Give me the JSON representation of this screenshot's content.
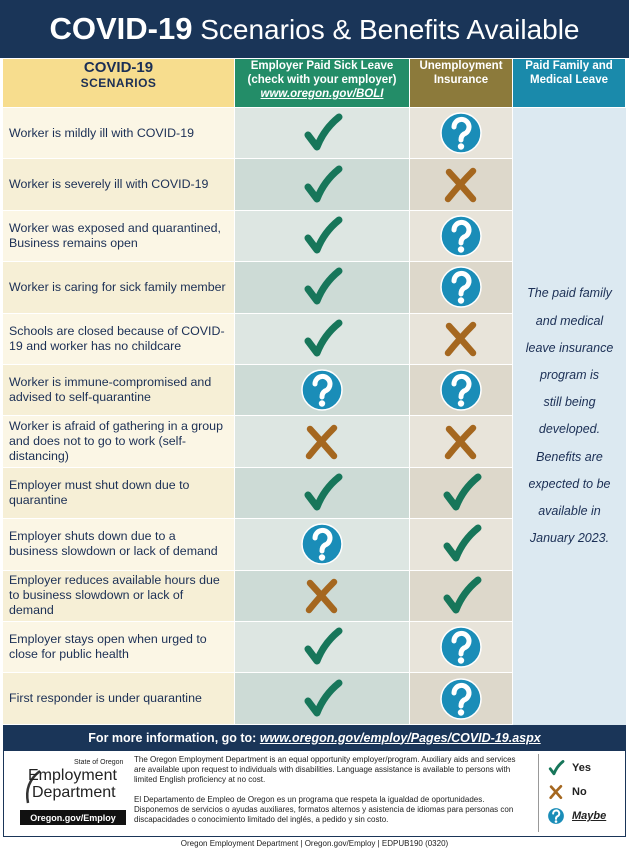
{
  "header": {
    "title_bold": "COVID-19",
    "title_rest": "Scenarios & Benefits Available"
  },
  "table": {
    "columns": [
      {
        "lines": [
          "COVID-19",
          "SCENARIOS"
        ]
      },
      {
        "lines": [
          "Employer Paid Sick Leave",
          "(check with your employer)"
        ],
        "link": "www.oregon.gov/BOLI"
      },
      {
        "lines": [
          "Unemployment",
          "Insurance"
        ]
      },
      {
        "lines": [
          "Paid Family and",
          "Medical Leave"
        ]
      }
    ],
    "rows": [
      "Worker is mildly ill with COVID-19",
      "Worker is severely ill with COVID-19",
      "Worker was exposed and quarantined, Business remains open",
      "Worker is caring for sick family member",
      "Schools are closed because of COVID-19 and worker has no childcare",
      "Worker is immune-compromised and advised to self-quarantine",
      "Worker is afraid of gathering in a group and does not to go to work (self-distancing)",
      "Employer must shut down due to quarantine",
      "Employer shuts down due to a business slowdown or lack of demand",
      "Employer reduces available hours due to business slowdown or lack of demand",
      "Employer stays open when urged to close for public health",
      "First responder is under quarantine"
    ],
    "note": [
      "The paid family",
      "and medical",
      "leave insurance",
      "program is",
      "still being",
      "developed.",
      "Benefits are",
      "expected to be",
      "available in",
      "January 2023."
    ]
  },
  "footer": {
    "prompt": "For more information, go to:",
    "url": "www.oregon.gov/employ/Pages/COVID-19.aspx"
  },
  "about": {
    "logo": {
      "small": "State of Oregon",
      "line1": "Employment",
      "line2": "Department",
      "site": "Oregon.gov/Employ"
    },
    "english": "The Oregon Employment Department is an equal opportunity employer/program. Auxiliary aids and services are available upon request to individuals with disabilities. Language assistance is available to persons with limited English proficiency at no cost.",
    "spanish": "El Departamento de Empleo de Oregon es un programa que respeta la igualdad de oportunidades. Disponemos de servicios o ayudas auxiliares, formatos alternos y asistencia de idiomas para personas con discapacidades o conocimiento limitado del inglés, a pedido y sin costo."
  },
  "legend": [
    "Yes",
    "No",
    "Maybe"
  ],
  "publication": "Oregon Employment Department | Oregon.gov/Employ | EDPUB190 (0320)"
}
